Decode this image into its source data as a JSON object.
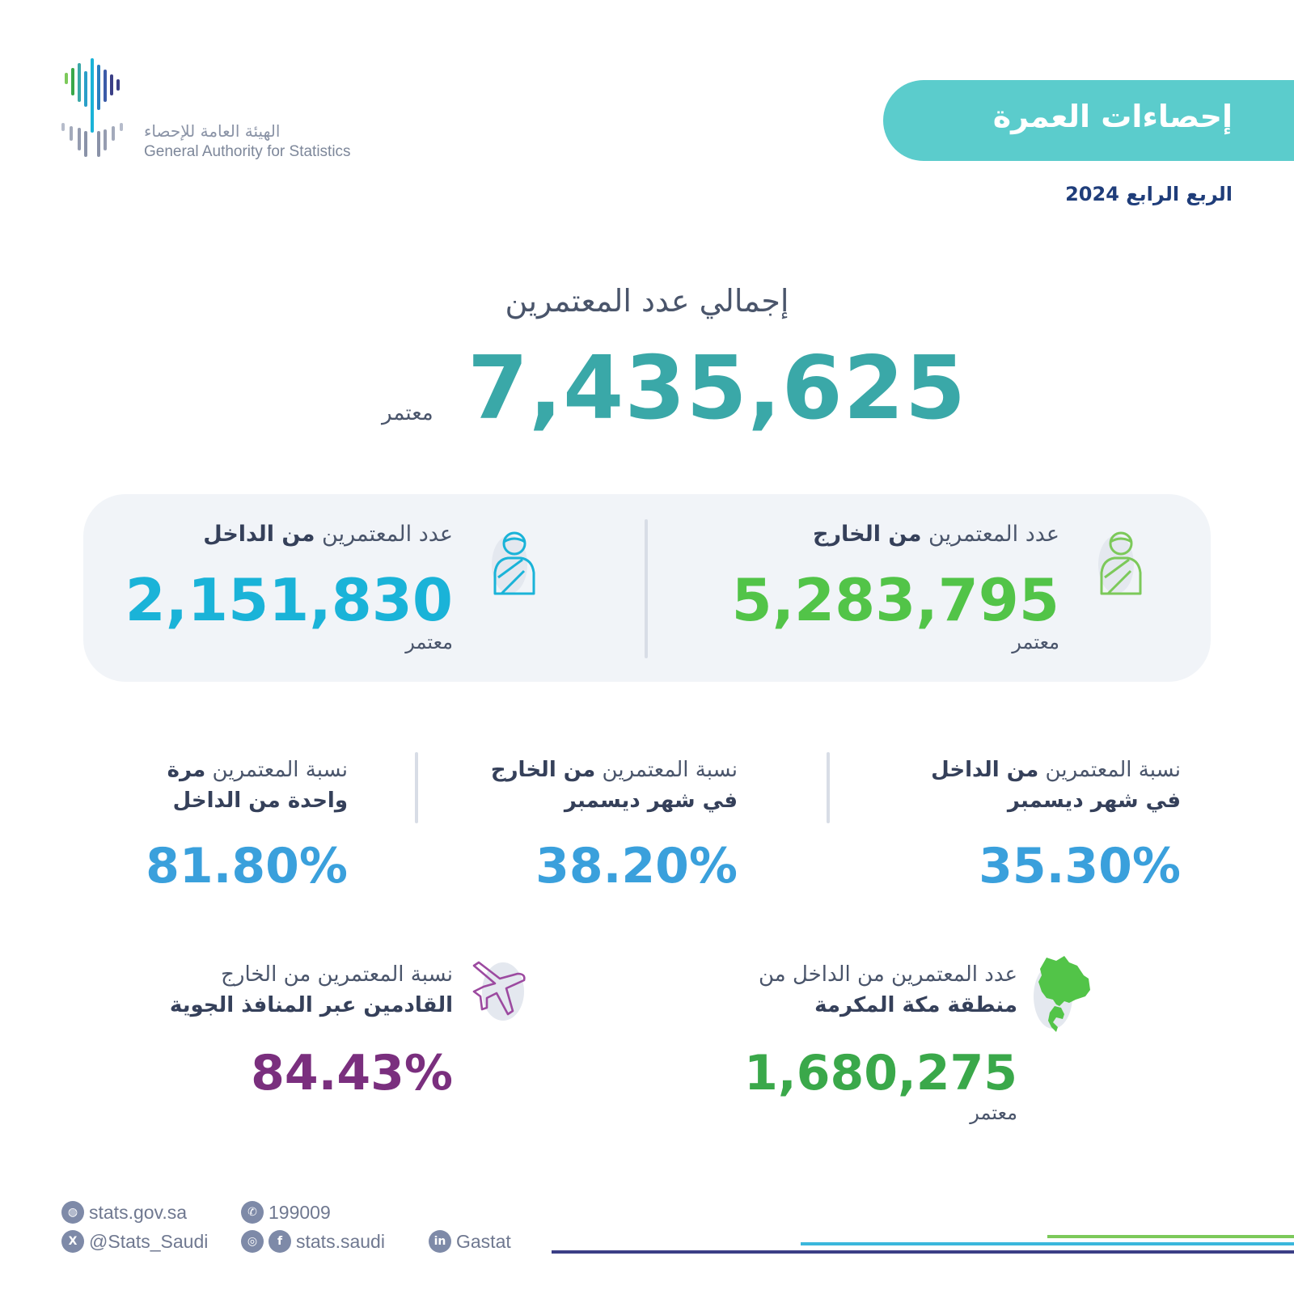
{
  "logo": {
    "arabic_name": "الهيئة العامة للإحصاء",
    "english_name": "General Authority for Statistics"
  },
  "header": {
    "title": "إحصاءات العمرة",
    "period": "الربع الرابع 2024",
    "accent_color": "#5bcccc"
  },
  "total": {
    "label": "إجمالي عدد المعتمرين",
    "value": "7,435,625",
    "unit": "معتمر",
    "color": "#3aa8a8"
  },
  "card": {
    "abroad": {
      "label_prefix": "عدد المعتمرين ",
      "label_bold": "من الخارج",
      "value": "5,283,795",
      "unit": "معتمر",
      "color": "#52c448",
      "icon": "pilgrim-icon"
    },
    "domestic": {
      "label_prefix": "عدد المعتمرين ",
      "label_bold": "من الداخل",
      "value": "2,151,830",
      "unit": "معتمر",
      "color": "#1ab3d8",
      "icon": "pilgrim-icon"
    }
  },
  "percentages": [
    {
      "line1_prefix": "نسبة المعتمرين ",
      "line1_bold": "من الداخل",
      "line2": "في شهر ديسمبر",
      "value": "35.30%"
    },
    {
      "line1_prefix": "نسبة المعتمرين ",
      "line1_bold": "من الخارج",
      "line2": "في شهر ديسمبر",
      "value": "38.20%"
    },
    {
      "line1_prefix": "نسبة المعتمرين ",
      "line1_bold": "مرة",
      "line2": "واحدة من الداخل",
      "value": "81.80%"
    }
  ],
  "mecca": {
    "line1": "عدد المعتمرين من الداخل من",
    "line2": "منطقة مكة المكرمة",
    "value": "1,680,275",
    "unit": "معتمر",
    "color": "#3aa84a",
    "icon": "map-icon"
  },
  "air": {
    "line1": "نسبة المعتمرين من الخارج",
    "line2": "القادمين عبر المنافذ الجوية",
    "value": "84.43%",
    "color": "#7a2f7e",
    "icon": "airplane-icon"
  },
  "footer": {
    "website": "stats.gov.sa",
    "phone": "199009",
    "x_handle": "@Stats_Saudi",
    "social_handle": "stats.saudi",
    "linkedin": "Gastat"
  }
}
